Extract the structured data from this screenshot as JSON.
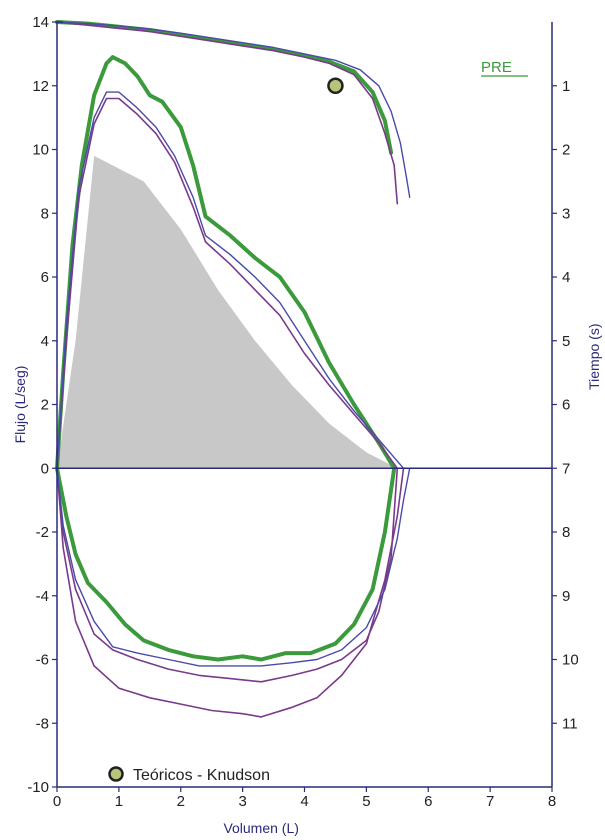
{
  "chart_data": {
    "type": "line",
    "title": "",
    "xlabel": "Volumen (L)",
    "ylabel": "Flujo (L/seg)",
    "y2label": "Tiempo (s)",
    "xlim": [
      0,
      8
    ],
    "ylim": [
      -10,
      14
    ],
    "y2lim": [
      0,
      11
    ],
    "x_ticks": [
      "0",
      "1",
      "2",
      "3",
      "4",
      "5",
      "6",
      "7",
      "8"
    ],
    "y_ticks": [
      "-10",
      "-8",
      "-6",
      "-4",
      "-2",
      "0",
      "2",
      "4",
      "6",
      "8",
      "10",
      "12",
      "14"
    ],
    "y2_ticks": [
      "1",
      "2",
      "3",
      "4",
      "5",
      "6",
      "7",
      "8",
      "9",
      "10",
      "11"
    ],
    "pre_label": "PRE",
    "legend": {
      "label": "Teóricos - Knudson",
      "position": "bottom-left"
    },
    "colors": {
      "axis": "#2a2a7a",
      "green": "#3b9a3b",
      "purple": "#7a3a8a",
      "blue": "#4a4aa8",
      "fill": "#c8c8c8",
      "marker": "#b9c47a"
    },
    "predicted_area": [
      [
        0,
        0
      ],
      [
        0.3,
        4
      ],
      [
        0.6,
        9.8
      ],
      [
        1.0,
        9.4
      ],
      [
        1.4,
        9.0
      ],
      [
        2.0,
        7.5
      ],
      [
        2.6,
        5.6
      ],
      [
        3.2,
        4.0
      ],
      [
        3.8,
        2.6
      ],
      [
        4.4,
        1.4
      ],
      [
        5.0,
        0.5
      ],
      [
        5.5,
        0
      ]
    ],
    "predicted_point": {
      "x": 4.5,
      "y": 12.0
    },
    "series": [
      {
        "color": "green",
        "width": 4,
        "points": [
          [
            0,
            0
          ],
          [
            0.1,
            3
          ],
          [
            0.25,
            7
          ],
          [
            0.4,
            9.5
          ],
          [
            0.6,
            11.7
          ],
          [
            0.8,
            12.7
          ],
          [
            0.9,
            12.9
          ],
          [
            1.1,
            12.7
          ],
          [
            1.3,
            12.3
          ],
          [
            1.5,
            11.7
          ],
          [
            1.7,
            11.5
          ],
          [
            2.0,
            10.7
          ],
          [
            2.2,
            9.5
          ],
          [
            2.4,
            7.9
          ],
          [
            2.8,
            7.3
          ],
          [
            3.2,
            6.6
          ],
          [
            3.6,
            6.0
          ],
          [
            4.0,
            4.9
          ],
          [
            4.4,
            3.3
          ],
          [
            4.8,
            2.0
          ],
          [
            5.2,
            0.8
          ],
          [
            5.45,
            0
          ]
        ]
      },
      {
        "color": "purple",
        "width": 1.6,
        "points": [
          [
            0,
            0
          ],
          [
            0.15,
            4
          ],
          [
            0.35,
            8.5
          ],
          [
            0.6,
            10.8
          ],
          [
            0.8,
            11.6
          ],
          [
            1.0,
            11.6
          ],
          [
            1.3,
            11.1
          ],
          [
            1.6,
            10.5
          ],
          [
            1.9,
            9.6
          ],
          [
            2.2,
            8.2
          ],
          [
            2.4,
            7.1
          ],
          [
            2.8,
            6.4
          ],
          [
            3.2,
            5.6
          ],
          [
            3.6,
            4.8
          ],
          [
            4.0,
            3.6
          ],
          [
            4.4,
            2.6
          ],
          [
            4.8,
            1.7
          ],
          [
            5.2,
            0.8
          ],
          [
            5.5,
            0
          ]
        ]
      },
      {
        "color": "blue",
        "width": 1.4,
        "points": [
          [
            0,
            0
          ],
          [
            0.15,
            4.5
          ],
          [
            0.35,
            8.8
          ],
          [
            0.6,
            11.0
          ],
          [
            0.8,
            11.8
          ],
          [
            1.0,
            11.8
          ],
          [
            1.3,
            11.3
          ],
          [
            1.6,
            10.7
          ],
          [
            1.9,
            9.8
          ],
          [
            2.2,
            8.5
          ],
          [
            2.4,
            7.3
          ],
          [
            2.8,
            6.7
          ],
          [
            3.2,
            6.0
          ],
          [
            3.6,
            5.2
          ],
          [
            4.0,
            4.0
          ],
          [
            4.4,
            2.8
          ],
          [
            4.8,
            1.8
          ],
          [
            5.2,
            0.9
          ],
          [
            5.6,
            0
          ]
        ]
      },
      {
        "color": "green",
        "width": 4,
        "points": [
          [
            0,
            0
          ],
          [
            0.15,
            -1.5
          ],
          [
            0.3,
            -2.7
          ],
          [
            0.5,
            -3.6
          ],
          [
            0.8,
            -4.2
          ],
          [
            1.1,
            -4.9
          ],
          [
            1.4,
            -5.4
          ],
          [
            1.8,
            -5.7
          ],
          [
            2.2,
            -5.9
          ],
          [
            2.6,
            -6.0
          ],
          [
            3.0,
            -5.9
          ],
          [
            3.3,
            -6.0
          ],
          [
            3.7,
            -5.8
          ],
          [
            4.1,
            -5.8
          ],
          [
            4.5,
            -5.5
          ],
          [
            4.8,
            -4.9
          ],
          [
            5.1,
            -3.8
          ],
          [
            5.3,
            -2.0
          ],
          [
            5.45,
            0
          ]
        ]
      },
      {
        "color": "purple",
        "width": 1.6,
        "points": [
          [
            0,
            0
          ],
          [
            0.1,
            -2.5
          ],
          [
            0.3,
            -4.8
          ],
          [
            0.6,
            -6.2
          ],
          [
            1.0,
            -6.9
          ],
          [
            1.5,
            -7.2
          ],
          [
            2.0,
            -7.4
          ],
          [
            2.5,
            -7.6
          ],
          [
            3.0,
            -7.7
          ],
          [
            3.3,
            -7.8
          ],
          [
            3.8,
            -7.5
          ],
          [
            4.2,
            -7.2
          ],
          [
            4.6,
            -6.5
          ],
          [
            5.0,
            -5.5
          ],
          [
            5.3,
            -3.5
          ],
          [
            5.5,
            -1.5
          ],
          [
            5.6,
            0
          ]
        ]
      },
      {
        "color": "purple",
        "width": 1.6,
        "points": [
          [
            0,
            0
          ],
          [
            0.1,
            -2.0
          ],
          [
            0.3,
            -3.8
          ],
          [
            0.6,
            -5.2
          ],
          [
            0.9,
            -5.7
          ],
          [
            1.3,
            -6.0
          ],
          [
            1.8,
            -6.3
          ],
          [
            2.3,
            -6.5
          ],
          [
            2.8,
            -6.6
          ],
          [
            3.3,
            -6.7
          ],
          [
            3.8,
            -6.5
          ],
          [
            4.2,
            -6.3
          ],
          [
            4.6,
            -6.0
          ],
          [
            5.0,
            -5.4
          ],
          [
            5.2,
            -4.5
          ],
          [
            5.4,
            -2.8
          ],
          [
            5.5,
            0
          ]
        ]
      },
      {
        "color": "blue",
        "width": 1.4,
        "points": [
          [
            0,
            0
          ],
          [
            0.1,
            -1.8
          ],
          [
            0.3,
            -3.5
          ],
          [
            0.6,
            -4.8
          ],
          [
            0.9,
            -5.6
          ],
          [
            1.3,
            -5.8
          ],
          [
            1.8,
            -6.0
          ],
          [
            2.3,
            -6.2
          ],
          [
            2.8,
            -6.2
          ],
          [
            3.3,
            -6.2
          ],
          [
            3.8,
            -6.1
          ],
          [
            4.2,
            -6.0
          ],
          [
            4.6,
            -5.7
          ],
          [
            5.0,
            -5.0
          ],
          [
            5.3,
            -3.8
          ],
          [
            5.5,
            -2.2
          ],
          [
            5.6,
            -1.0
          ],
          [
            5.7,
            0
          ]
        ]
      },
      {
        "color": "green",
        "width": 4,
        "points": [
          [
            0,
            14
          ],
          [
            0.5,
            13.95
          ],
          [
            1.0,
            13.85
          ],
          [
            1.5,
            13.75
          ],
          [
            2.0,
            13.6
          ],
          [
            2.5,
            13.45
          ],
          [
            3.0,
            13.3
          ],
          [
            3.5,
            13.15
          ],
          [
            4.0,
            12.95
          ],
          [
            4.4,
            12.75
          ],
          [
            4.8,
            12.45
          ],
          [
            5.1,
            11.8
          ],
          [
            5.3,
            10.9
          ],
          [
            5.4,
            9.9
          ]
        ]
      },
      {
        "color": "purple",
        "width": 1.6,
        "points": [
          [
            0,
            14
          ],
          [
            0.5,
            13.9
          ],
          [
            1.0,
            13.8
          ],
          [
            1.5,
            13.7
          ],
          [
            2.0,
            13.55
          ],
          [
            2.5,
            13.4
          ],
          [
            3.0,
            13.25
          ],
          [
            3.5,
            13.1
          ],
          [
            4.0,
            12.9
          ],
          [
            4.4,
            12.7
          ],
          [
            4.8,
            12.35
          ],
          [
            5.1,
            11.6
          ],
          [
            5.3,
            10.5
          ],
          [
            5.45,
            9.5
          ],
          [
            5.5,
            8.3
          ]
        ]
      },
      {
        "color": "blue",
        "width": 1.4,
        "points": [
          [
            0,
            14
          ],
          [
            0.5,
            13.95
          ],
          [
            1.0,
            13.87
          ],
          [
            1.5,
            13.78
          ],
          [
            2.0,
            13.65
          ],
          [
            2.5,
            13.5
          ],
          [
            3.0,
            13.35
          ],
          [
            3.5,
            13.2
          ],
          [
            4.0,
            13.0
          ],
          [
            4.5,
            12.8
          ],
          [
            4.9,
            12.5
          ],
          [
            5.2,
            12.0
          ],
          [
            5.4,
            11.2
          ],
          [
            5.55,
            10.2
          ],
          [
            5.65,
            9.1
          ],
          [
            5.7,
            8.5
          ]
        ]
      }
    ]
  }
}
